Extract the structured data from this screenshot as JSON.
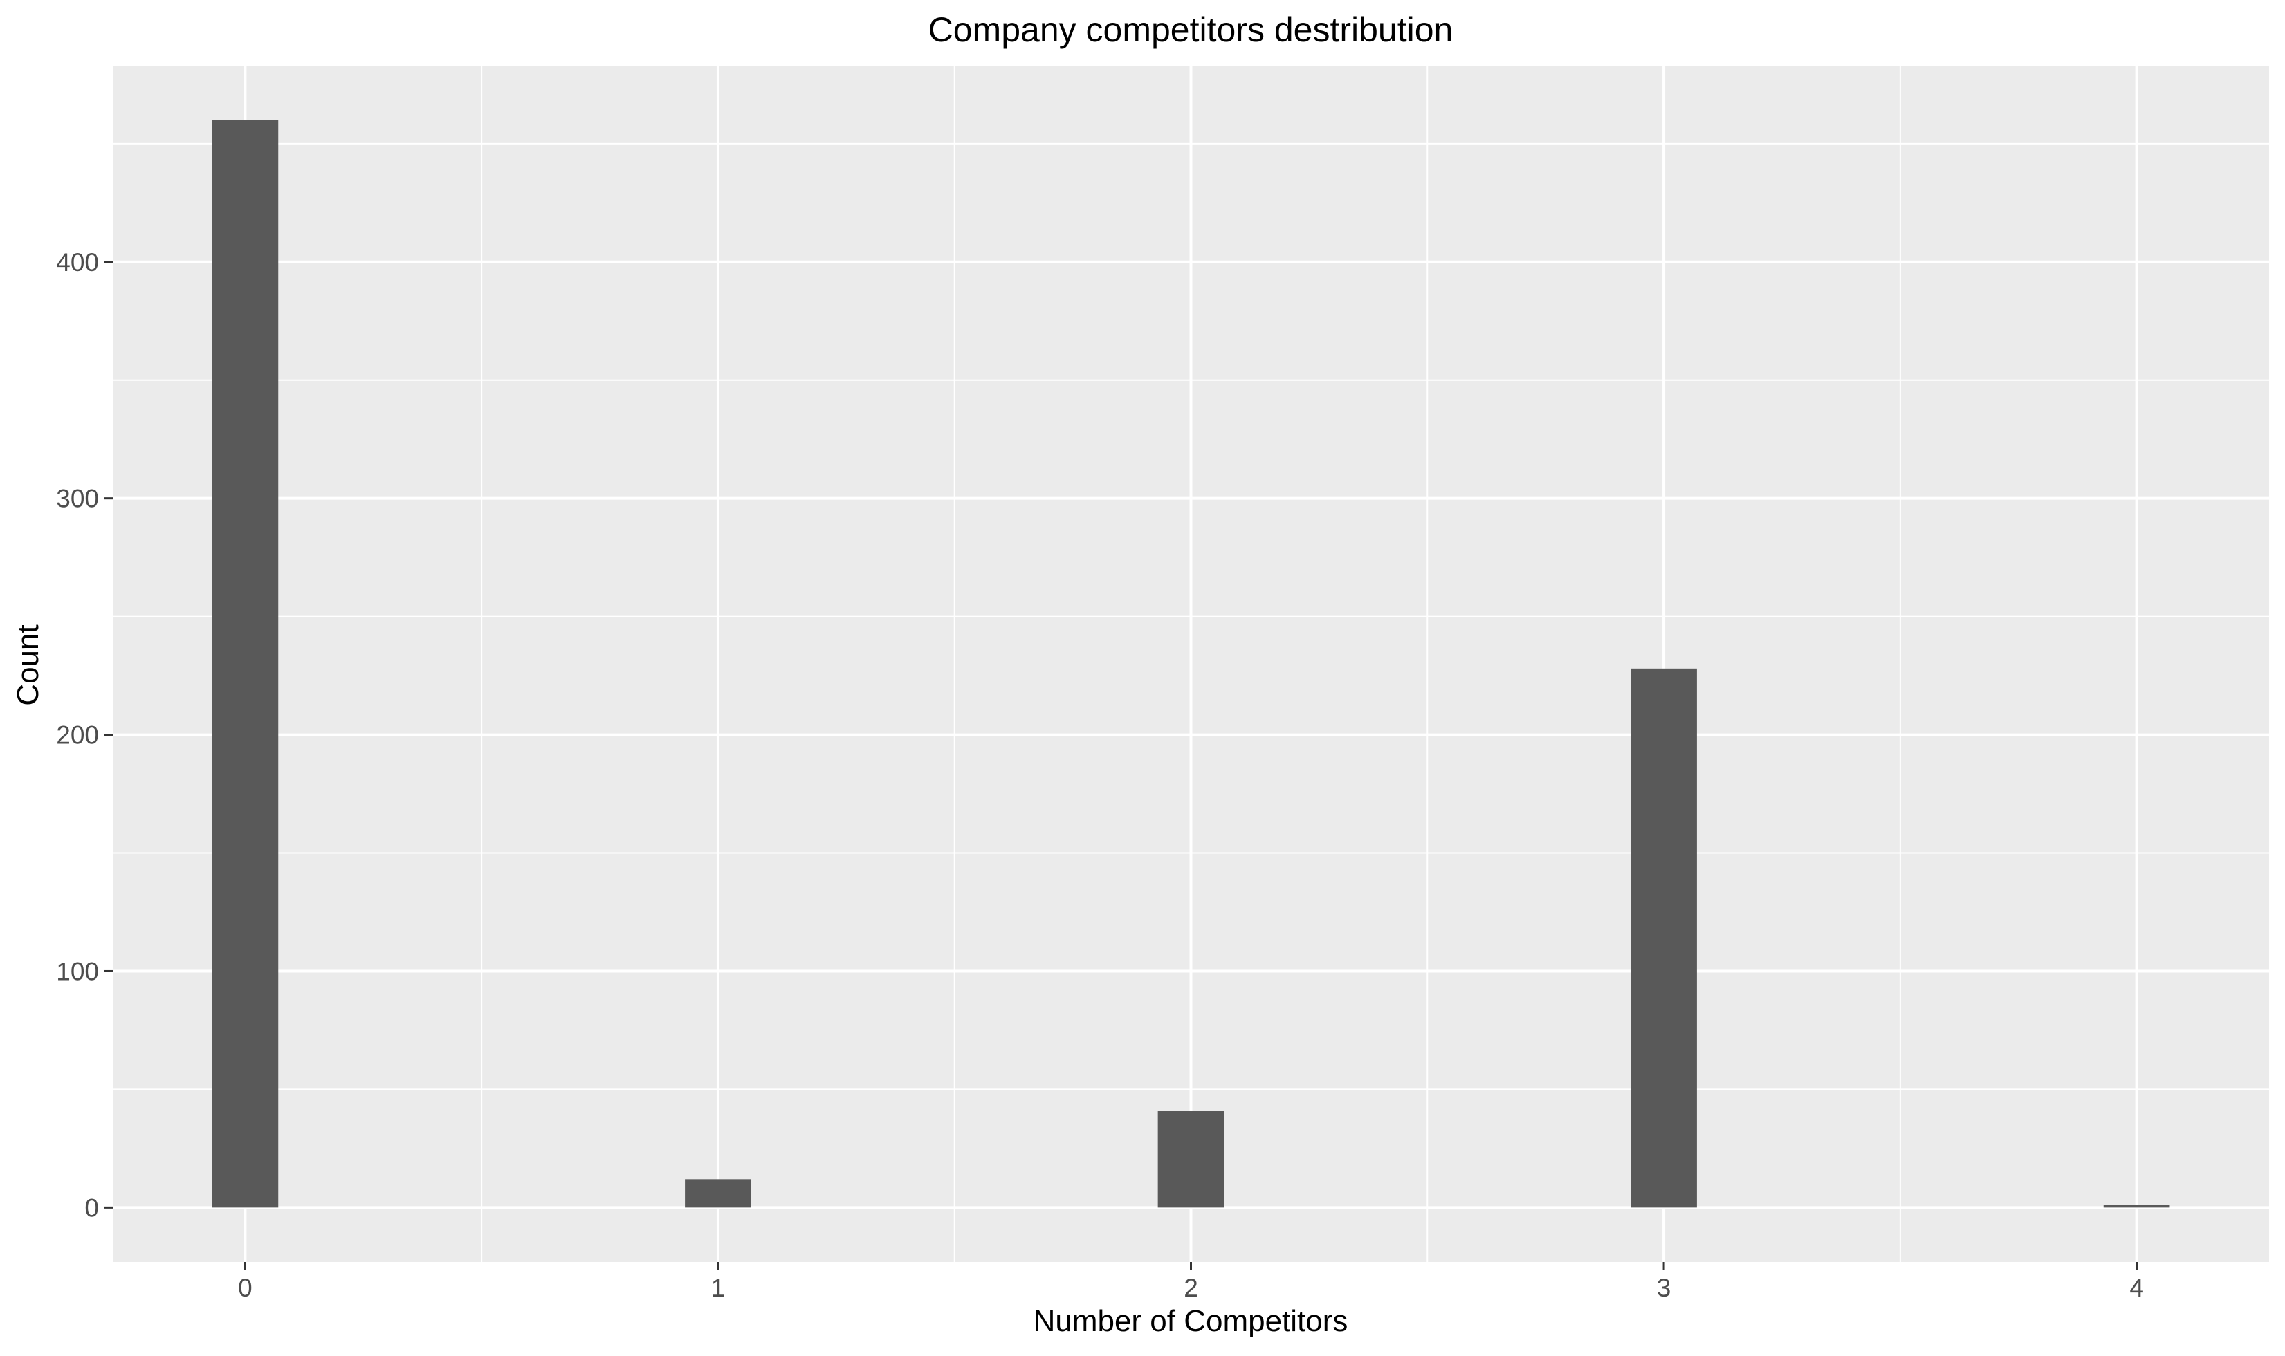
{
  "chart_data": {
    "type": "bar",
    "title": "Company competitors destribution",
    "xlabel": "Number of Competitors",
    "ylabel": "Count",
    "x": [
      0,
      1,
      2,
      3,
      4
    ],
    "values": [
      460,
      12,
      41,
      228,
      1
    ],
    "bar_width": 0.14,
    "xlim": [
      -0.28,
      4.28
    ],
    "ylim": [
      -23,
      483
    ],
    "xticks": [
      0,
      1,
      2,
      3,
      4
    ],
    "yticks": [
      0,
      100,
      200,
      300,
      400
    ],
    "grid": true,
    "legend": "none",
    "colors": {
      "panel": "#ebebeb",
      "grid": "#ffffff",
      "bar": "#595959",
      "tick_text": "#4d4d4d",
      "text": "#000000",
      "tick_mark": "#333333"
    }
  }
}
